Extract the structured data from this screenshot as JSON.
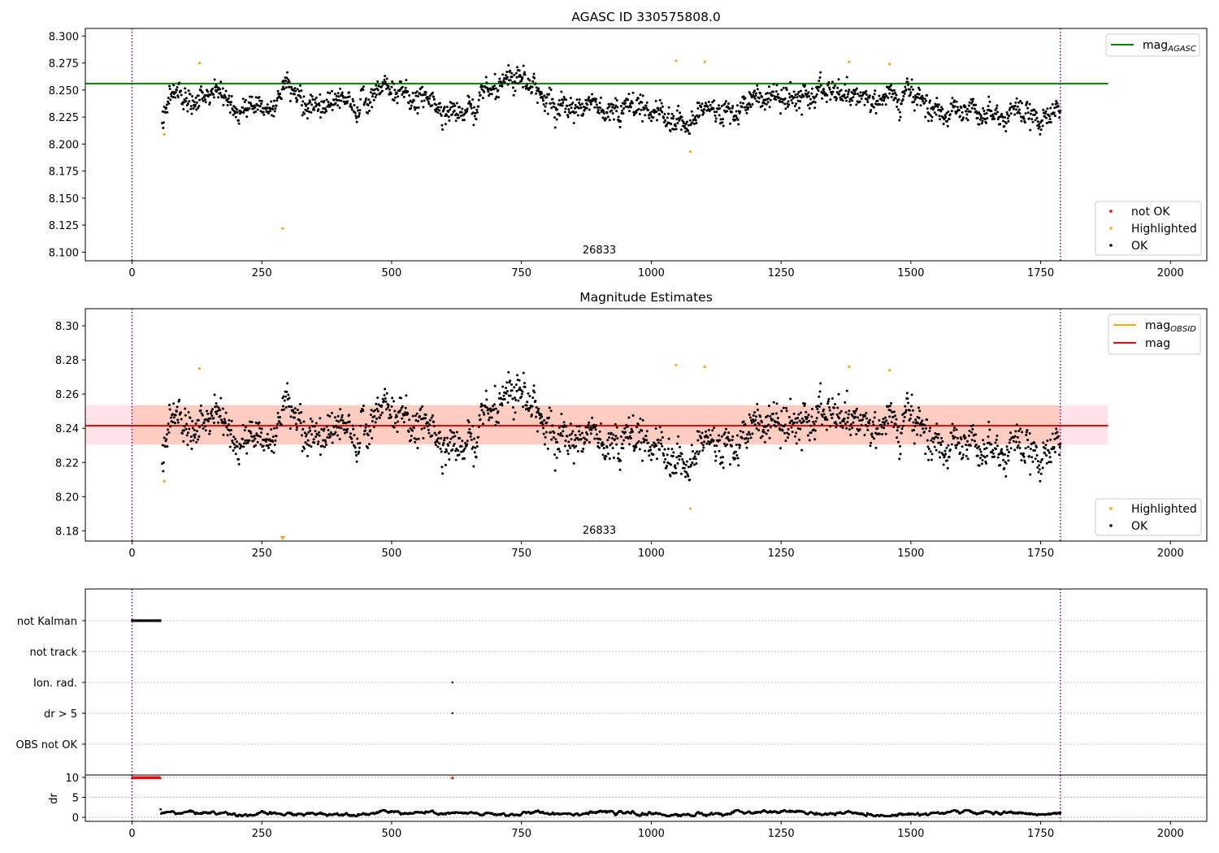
{
  "colors": {
    "ok": "#000000",
    "not_ok": "#ff0000",
    "highlighted": "#ffa500",
    "mag_agasc_line": "#008000",
    "mag_line": "#ff0000",
    "mag_obsid_line": "#ffa500",
    "band_outer": "#ffc0cb",
    "band_inner": "#ffa07a",
    "obs_boundary": "#800080",
    "grid": "#b0b0b0"
  },
  "chart_data": [
    {
      "type": "scatter",
      "title": "AGASC ID 330575808.0",
      "xlim": [
        -90,
        2070
      ],
      "ylim": [
        8.092,
        8.307
      ],
      "xticks": [
        0,
        250,
        500,
        750,
        1000,
        1250,
        1500,
        1750,
        2000
      ],
      "yticks": [
        8.1,
        8.125,
        8.15,
        8.175,
        8.2,
        8.225,
        8.25,
        8.275,
        8.3
      ],
      "ytick_labels": [
        "8.100",
        "8.125",
        "8.150",
        "8.175",
        "8.200",
        "8.225",
        "8.250",
        "8.275",
        "8.300"
      ],
      "obs_label": "26833",
      "obs_boundaries": [
        0,
        1788
      ],
      "mag_agasc": 8.256,
      "mag_agasc_xrange": [
        -90,
        1880
      ],
      "legend_lines": [
        {
          "label": "mag",
          "sub": "AGASC",
          "color_key": "mag_agasc_line"
        }
      ],
      "legend_points": [
        {
          "label": "not OK",
          "color_key": "not_ok"
        },
        {
          "label": "Highlighted",
          "color_key": "highlighted"
        },
        {
          "label": "OK",
          "color_key": "ok"
        }
      ],
      "highlighted_points": [
        [
          62,
          8.209
        ],
        [
          130,
          8.275
        ],
        [
          290,
          8.122
        ],
        [
          1048,
          8.277
        ],
        [
          1075,
          8.193
        ],
        [
          1103,
          8.276
        ],
        [
          1381,
          8.276
        ],
        [
          1459,
          8.274
        ]
      ],
      "ok_series": {
        "x_start": 58,
        "x_end": 1788,
        "base": 8.239,
        "noise": 0.0085,
        "min": 8.209,
        "max": 8.274
      }
    },
    {
      "type": "scatter",
      "title": "Magnitude Estimates",
      "xlim": [
        -90,
        2070
      ],
      "ylim": [
        8.174,
        8.31
      ],
      "xticks": [
        0,
        250,
        500,
        750,
        1000,
        1250,
        1500,
        1750,
        2000
      ],
      "yticks": [
        8.18,
        8.2,
        8.22,
        8.24,
        8.26,
        8.28,
        8.3
      ],
      "ytick_labels": [
        "8.18",
        "8.20",
        "8.22",
        "8.24",
        "8.26",
        "8.28",
        "8.30"
      ],
      "obs_label": "26833",
      "obs_boundaries": [
        0,
        1788
      ],
      "mag": 8.2415,
      "mag_band": [
        8.2305,
        8.2535
      ],
      "mag_xrange": [
        -90,
        1880
      ],
      "mag_obsid": 8.2415,
      "mag_obsid_xrange": [
        0,
        1788
      ],
      "legend_lines": [
        {
          "label": "mag",
          "sub": "OBSID",
          "color_key": "mag_obsid_line"
        },
        {
          "label": "mag",
          "sub": "",
          "color_key": "mag_line"
        }
      ],
      "legend_points": [
        {
          "label": "Highlighted",
          "color_key": "highlighted"
        },
        {
          "label": "OK",
          "color_key": "ok"
        }
      ],
      "highlighted_points": [
        [
          62,
          8.209
        ],
        [
          130,
          8.275
        ],
        [
          1048,
          8.277
        ],
        [
          1075,
          8.193
        ],
        [
          1103,
          8.276
        ],
        [
          1381,
          8.276
        ],
        [
          1459,
          8.274
        ]
      ],
      "clipped_points": [
        290
      ]
    },
    {
      "type": "scatter",
      "title": "",
      "xlim": [
        -90,
        2070
      ],
      "rows": [
        "not Kalman",
        "not track",
        "Ion. rad.",
        "dr > 5",
        "OBS not OK"
      ],
      "flags": {
        "not Kalman": {
          "x_range": [
            0,
            55
          ]
        },
        "Ion. rad.": {
          "x": [
            617
          ]
        },
        "dr > 5": {
          "x": [
            617
          ]
        }
      },
      "obs_boundaries": [
        0,
        1788
      ]
    },
    {
      "type": "scatter",
      "title": "",
      "ylabel": "dr",
      "xlim": [
        -90,
        2070
      ],
      "ylim": [
        -1,
        10.6
      ],
      "xticks": [
        0,
        250,
        500,
        750,
        1000,
        1250,
        1500,
        1750,
        2000
      ],
      "yticks": [
        0,
        5,
        10
      ],
      "ytick_labels": [
        "0",
        "5",
        "10"
      ],
      "clipped_dr_ranges": [
        [
          0,
          55
        ],
        [
          617,
          617
        ]
      ],
      "dr_series": {
        "x_start": 55,
        "x_end": 1788,
        "typical_min": 0.3,
        "typical_max": 1.8,
        "first_value": 2.0
      },
      "obs_boundaries": [
        0,
        1788
      ]
    }
  ]
}
